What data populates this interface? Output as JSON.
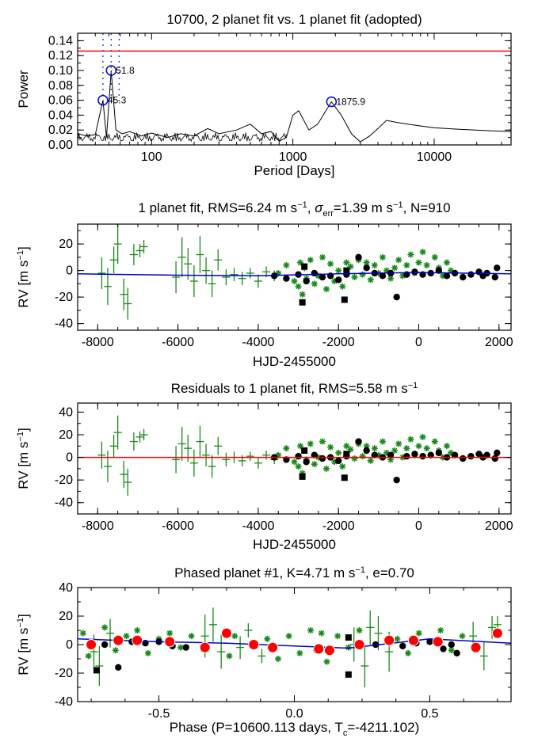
{
  "chart_data": [
    {
      "id": "periodogram",
      "type": "line",
      "title": "10700,  2 planet fit vs. 1 planet fit (adopted)",
      "xlabel": "Period [Days]",
      "ylabel": "Power",
      "xscale": "log",
      "xlim": [
        30,
        35000
      ],
      "ylim": [
        0,
        0.15
      ],
      "xticks": [
        100,
        1000,
        10000
      ],
      "xtick_labels": [
        "100",
        "1000",
        "10000"
      ],
      "yticks": [
        0.0,
        0.02,
        0.04,
        0.06,
        0.08,
        0.1,
        0.12,
        0.14
      ],
      "ytick_labels": [
        "0.00",
        "0.02",
        "0.04",
        "0.06",
        "0.08",
        "0.10",
        "0.12",
        "0.14"
      ],
      "fap_line": {
        "y": 0.126,
        "color": "#ff0000"
      },
      "dotted_lines_x": [
        45.3,
        51.8,
        59
      ],
      "series": [
        {
          "name": "power",
          "color": "#000000",
          "x": [
            30,
            35,
            40,
            45.3,
            48,
            51.8,
            56,
            62,
            70,
            85,
            100,
            130,
            160,
            200,
            250,
            300,
            400,
            500,
            600,
            700,
            800,
            900,
            1000,
            1100,
            1300,
            1500,
            1875.9,
            2200,
            2600,
            3000,
            3500,
            4000,
            4600,
            5500,
            7000,
            10000,
            15000,
            25000,
            35000
          ],
          "y": [
            0.015,
            0.012,
            0.014,
            0.06,
            0.01,
            0.1,
            0.02,
            0.015,
            0.018,
            0.012,
            0.016,
            0.01,
            0.015,
            0.012,
            0.022,
            0.015,
            0.02,
            0.028,
            0.015,
            0.018,
            0.005,
            0.01,
            0.04,
            0.046,
            0.02,
            0.028,
            0.058,
            0.04,
            0.015,
            0.004,
            0.012,
            0.022,
            0.033,
            0.03,
            0.027,
            0.023,
            0.021,
            0.019,
            0.018
          ]
        }
      ],
      "peaks": [
        {
          "period": 45.3,
          "power": 0.06,
          "label": "45.3"
        },
        {
          "period": 51.8,
          "power": 0.1,
          "label": "51.8"
        },
        {
          "period": 1875.9,
          "power": 0.058,
          "label": "1875.9"
        }
      ]
    },
    {
      "id": "rv-timeseries",
      "type": "scatter",
      "title_parts": [
        "1 planet fit, RMS=6.24 m s",
        "−1",
        ", σ",
        "err",
        "=1.39 m s",
        "−1",
        ", N=910"
      ],
      "xlabel": "HJD-2455000",
      "ylabel": "RV [m s⁻¹]",
      "xlim": [
        -8500,
        2300
      ],
      "ylim": [
        -45,
        35
      ],
      "xticks": [
        -8000,
        -6000,
        -4000,
        -2000,
        0,
        2000
      ],
      "xtick_labels": [
        "-8000",
        "-6000",
        "-4000",
        "-2000",
        "0",
        "2000"
      ],
      "yticks": [
        -40,
        -20,
        0,
        20
      ],
      "ytick_labels": [
        "-40",
        "-20",
        "0",
        "20"
      ],
      "model_line": {
        "color": "#0000cc",
        "x": [
          -8500,
          -6000,
          -4000,
          -2000,
          0,
          2300
        ],
        "y": [
          -2.5,
          -3.5,
          -4.0,
          -2.5,
          -1.5,
          -2.5
        ]
      },
      "series": [
        {
          "name": "green-errorbars",
          "color": "#1a8a1a",
          "marker": "cross",
          "x": [
            -7900,
            -7750,
            -7600,
            -7500,
            -7350,
            -7250,
            -7100,
            -6950,
            -6850,
            -6050,
            -5900,
            -5750,
            -5600,
            -5450,
            -5300,
            -5150,
            -5000,
            -4800,
            -4600,
            -4400,
            -4200,
            -4000,
            -3800,
            -3600
          ],
          "y": [
            -2,
            -12,
            8,
            20,
            -18,
            -25,
            12,
            15,
            18,
            -5,
            10,
            5,
            -8,
            12,
            0,
            -10,
            8,
            -5,
            -3,
            -6,
            -2,
            -8,
            -1,
            -4
          ],
          "err": [
            12,
            14,
            10,
            15,
            12,
            12,
            8,
            5,
            5,
            12,
            15,
            12,
            12,
            14,
            10,
            10,
            8,
            6,
            5,
            5,
            4,
            5,
            4,
            4
          ]
        },
        {
          "name": "green-stars",
          "color": "#1a8a1a",
          "marker": "star",
          "x": [
            -3500,
            -3300,
            -3100,
            -3000,
            -2950,
            -2900,
            -2850,
            -2800,
            -2700,
            -2600,
            -2500,
            -2400,
            -2300,
            -2200,
            -2100,
            -2000,
            -1900,
            -1800,
            -1700,
            -1600,
            -1500,
            -1400,
            -1300,
            -1200,
            -1100,
            -1000,
            -900,
            -800,
            -700,
            -600,
            -500,
            -400,
            -300,
            -200,
            -100,
            0,
            100,
            200,
            300,
            400,
            500,
            600,
            700,
            800
          ],
          "y": [
            -2,
            4,
            -8,
            -12,
            6,
            -18,
            2,
            -6,
            8,
            -10,
            -4,
            10,
            -14,
            5,
            -8,
            0,
            -12,
            6,
            3,
            -5,
            8,
            -3,
            6,
            -7,
            4,
            -2,
            10,
            0,
            -6,
            2,
            8,
            -4,
            4,
            12,
            -2,
            6,
            14,
            4,
            -2,
            10,
            2,
            -4,
            6,
            0
          ]
        },
        {
          "name": "black-circles",
          "color": "#000000",
          "marker": "circle",
          "x": [
            -3600,
            -3300,
            -3000,
            -2800,
            -2600,
            -2400,
            -2200,
            -2000,
            -1800,
            -1500,
            -1300,
            -1100,
            -900,
            -700,
            -550,
            -300,
            -100,
            100,
            300,
            500,
            700,
            900,
            1100,
            1300,
            1500,
            1600,
            1700,
            1900,
            1950
          ],
          "y": [
            -4,
            -6,
            -3,
            -8,
            -2,
            -5,
            -4,
            -7,
            -3,
            10,
            2,
            -2,
            -4,
            -2,
            -20,
            -3,
            -1,
            -3,
            -2,
            0,
            -4,
            -2,
            -5,
            -3,
            -1,
            -4,
            -2,
            -5,
            2
          ]
        },
        {
          "name": "black-squares",
          "color": "#000000",
          "marker": "square",
          "x": [
            -2900,
            -2850,
            -1850,
            -1800
          ],
          "y": [
            -24,
            3,
            -22,
            0
          ]
        }
      ]
    },
    {
      "id": "residuals",
      "type": "scatter",
      "title_parts": [
        "Residuals to 1 planet fit, RMS=5.58 m s",
        "−1"
      ],
      "xlabel": "HJD-2455000",
      "ylabel": "RV [m s⁻¹]",
      "xlim": [
        -8500,
        2300
      ],
      "ylim": [
        -50,
        48
      ],
      "xticks": [
        -8000,
        -6000,
        -4000,
        -2000,
        0,
        2000
      ],
      "xtick_labels": [
        "-8000",
        "-6000",
        "-4000",
        "-2000",
        "0",
        "2000"
      ],
      "yticks": [
        -40,
        -20,
        0,
        20,
        40
      ],
      "ytick_labels": [
        "-40",
        "-20",
        "0",
        "20",
        "40"
      ],
      "zero_line": {
        "y": 0,
        "color": "#ff0000"
      },
      "series": [
        {
          "name": "green-errorbars",
          "color": "#1a8a1a",
          "marker": "cross",
          "x": [
            -7900,
            -7750,
            -7600,
            -7500,
            -7350,
            -7250,
            -7100,
            -6950,
            -6850,
            -6050,
            -5900,
            -5750,
            -5600,
            -5450,
            -5300,
            -5150,
            -5000,
            -4800,
            -4600,
            -4400,
            -4200,
            -4000,
            -3800,
            -3600
          ],
          "y": [
            2,
            -8,
            10,
            22,
            -15,
            -22,
            14,
            18,
            20,
            -2,
            12,
            8,
            -5,
            14,
            2,
            -8,
            10,
            -2,
            0,
            -3,
            1,
            -5,
            2,
            -2
          ],
          "err": [
            12,
            14,
            10,
            15,
            12,
            12,
            8,
            5,
            5,
            12,
            15,
            12,
            12,
            14,
            10,
            10,
            8,
            6,
            5,
            5,
            4,
            5,
            4,
            4
          ]
        },
        {
          "name": "green-stars",
          "color": "#1a8a1a",
          "marker": "star",
          "x": [
            -3500,
            -3300,
            -3100,
            -3000,
            -2950,
            -2900,
            -2850,
            -2800,
            -2700,
            -2600,
            -2500,
            -2400,
            -2300,
            -2200,
            -2100,
            -2000,
            -1900,
            -1800,
            -1700,
            -1600,
            -1500,
            -1400,
            -1300,
            -1200,
            -1100,
            -1000,
            -900,
            -800,
            -700,
            -600,
            -500,
            -400,
            -300,
            -200,
            -100,
            0,
            100,
            200,
            300,
            400,
            500,
            600,
            700,
            800
          ],
          "y": [
            2,
            8,
            -4,
            -8,
            10,
            -14,
            6,
            -2,
            12,
            -6,
            0,
            14,
            -10,
            9,
            -4,
            4,
            -8,
            10,
            7,
            -1,
            12,
            1,
            10,
            -3,
            8,
            2,
            14,
            4,
            -2,
            6,
            12,
            0,
            8,
            16,
            2,
            10,
            18,
            8,
            2,
            14,
            6,
            0,
            10,
            4
          ]
        },
        {
          "name": "black-circles",
          "color": "#000000",
          "marker": "circle",
          "x": [
            -3600,
            -3300,
            -3000,
            -2800,
            -2600,
            -2400,
            -2200,
            -2000,
            -1800,
            -1500,
            -1300,
            -1100,
            -900,
            -700,
            -550,
            -300,
            -100,
            100,
            300,
            500,
            700,
            900,
            1100,
            1300,
            1500,
            1600,
            1700,
            1900,
            1950
          ],
          "y": [
            0,
            -2,
            1,
            -4,
            2,
            -1,
            0,
            -3,
            1,
            14,
            6,
            2,
            0,
            2,
            -20,
            1,
            3,
            1,
            2,
            4,
            0,
            2,
            -1,
            1,
            3,
            0,
            2,
            -1,
            4
          ]
        },
        {
          "name": "black-squares",
          "color": "#000000",
          "marker": "square",
          "x": [
            -2900,
            -2850,
            -1850,
            -1800
          ],
          "y": [
            -17,
            6,
            -18,
            3
          ]
        }
      ]
    },
    {
      "id": "phased",
      "type": "scatter",
      "title_parts": [
        "Phased planet #1, K=4.71 m s",
        "−1",
        ", e=0.70"
      ],
      "xlabel_parts": [
        "Phase (P=10600.113 days, T",
        "c",
        "=-4211.102)"
      ],
      "ylabel": "RV [m s⁻¹]",
      "xlim": [
        -0.8,
        0.8
      ],
      "ylim": [
        -40,
        40
      ],
      "xticks": [
        -0.5,
        0.0,
        0.5
      ],
      "xtick_labels": [
        "-0.5",
        "0.0",
        "0.5"
      ],
      "yticks": [
        -40,
        -20,
        0,
        20,
        40
      ],
      "ytick_labels": [
        "-40",
        "-20",
        "0",
        "20",
        "40"
      ],
      "model_line": {
        "color": "#0000cc",
        "x": [
          -0.8,
          -0.5,
          -0.25,
          0.0,
          0.2,
          0.5,
          0.8
        ],
        "y": [
          4.0,
          2.0,
          1.0,
          -1.0,
          -2.5,
          4.0,
          1.0
        ]
      },
      "series": [
        {
          "name": "green-errorbars",
          "color": "#1a8a1a",
          "marker": "cross",
          "x": [
            -0.74,
            -0.72,
            -0.68,
            -0.33,
            -0.3,
            -0.27,
            -0.2,
            -0.17,
            -0.12,
            0.22,
            0.26,
            0.28,
            0.31,
            0.35,
            0.66,
            0.7,
            0.73,
            0.75
          ],
          "y": [
            -5,
            -15,
            8,
            6,
            14,
            -5,
            -2,
            10,
            -8,
            0,
            -15,
            12,
            8,
            -5,
            6,
            -8,
            12,
            14
          ],
          "err": [
            12,
            14,
            10,
            15,
            12,
            12,
            8,
            5,
            5,
            12,
            15,
            12,
            12,
            14,
            10,
            10,
            8,
            6
          ]
        },
        {
          "name": "green-stars",
          "color": "#1a8a1a",
          "marker": "star",
          "x": [
            -0.78,
            -0.76,
            -0.7,
            -0.66,
            -0.62,
            -0.58,
            -0.54,
            -0.5,
            -0.46,
            -0.42,
            -0.38,
            -0.24,
            -0.22,
            -0.1,
            -0.06,
            -0.02,
            0.02,
            0.06,
            0.08,
            0.1,
            0.12,
            0.16,
            0.2,
            0.24,
            0.38,
            0.42,
            0.46,
            0.5,
            0.54,
            0.58,
            0.62
          ],
          "y": [
            8,
            -8,
            12,
            -4,
            6,
            10,
            -6,
            4,
            8,
            -2,
            6,
            -8,
            6,
            4,
            -10,
            6,
            -6,
            10,
            -4,
            8,
            -12,
            6,
            -2,
            10,
            4,
            -6,
            8,
            2,
            10,
            -4,
            6
          ]
        },
        {
          "name": "black-circles",
          "color": "#000000",
          "marker": "circle",
          "x": [
            -0.75,
            -0.7,
            -0.65,
            -0.6,
            -0.55,
            -0.5,
            -0.45,
            -0.4,
            -0.65,
            0.3,
            0.35,
            0.4,
            0.45,
            0.5,
            0.55,
            0.58,
            0.6
          ],
          "y": [
            1,
            0,
            3,
            2,
            1,
            2,
            -1,
            -2,
            -16,
            0,
            2,
            -1,
            1,
            2,
            -3,
            0,
            -6
          ]
        },
        {
          "name": "black-squares",
          "color": "#000000",
          "marker": "square",
          "x": [
            -0.73,
            0.2,
            0.2
          ],
          "y": [
            -18,
            -21,
            5
          ]
        },
        {
          "name": "binned",
          "color": "#ff0000",
          "marker": "bigdot",
          "x": [
            -0.75,
            -0.65,
            -0.58,
            -0.46,
            -0.33,
            -0.25,
            -0.15,
            -0.08,
            0.09,
            0.13,
            0.24,
            0.35,
            0.44,
            0.53,
            0.67,
            0.75
          ],
          "y": [
            0,
            3,
            3,
            2,
            -2,
            8,
            0,
            -2,
            -3,
            -4,
            0,
            3,
            3,
            2,
            -2,
            8
          ]
        }
      ]
    }
  ]
}
